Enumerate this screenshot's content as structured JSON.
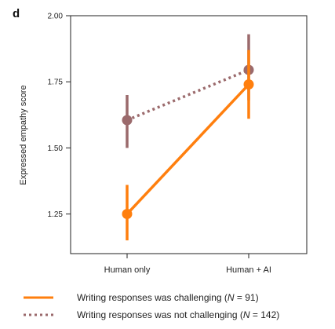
{
  "panel_label": "d",
  "legend": {
    "items": [
      {
        "prefix": "Writing responses was challenging (",
        "n_label": "N",
        "suffix": " = 91)",
        "color": "#ff7f0e",
        "style": "solid"
      },
      {
        "prefix": "Writing responses was not challenging (",
        "n_label": "N",
        "suffix": " = 142)",
        "color": "#9b6a6c",
        "style": "dotted"
      }
    ]
  },
  "chart_data": {
    "type": "line",
    "categories": [
      "Human only",
      "Human + AI"
    ],
    "ylabel": "Expressed empathy score",
    "xlabel": "",
    "ylim": [
      1.1,
      2.0
    ],
    "yticks": [
      1.25,
      1.5,
      1.75,
      2.0
    ],
    "ytick_labels": [
      "1.25",
      "1.50",
      "1.75",
      "2.00"
    ],
    "grid": false,
    "legend_position": "bottom",
    "series": [
      {
        "name": "Writing responses was challenging (N = 91)",
        "values": [
          1.25,
          1.74
        ],
        "errors": [
          [
            1.15,
            1.36
          ],
          [
            1.61,
            1.87
          ]
        ],
        "color": "#ff7f0e",
        "line_style": "solid"
      },
      {
        "name": "Writing responses was not challenging (N = 142)",
        "values": [
          1.605,
          1.795
        ],
        "errors": [
          [
            1.5,
            1.7
          ],
          [
            1.68,
            1.93
          ]
        ],
        "color": "#9b6a6c",
        "line_style": "dotted"
      }
    ]
  }
}
